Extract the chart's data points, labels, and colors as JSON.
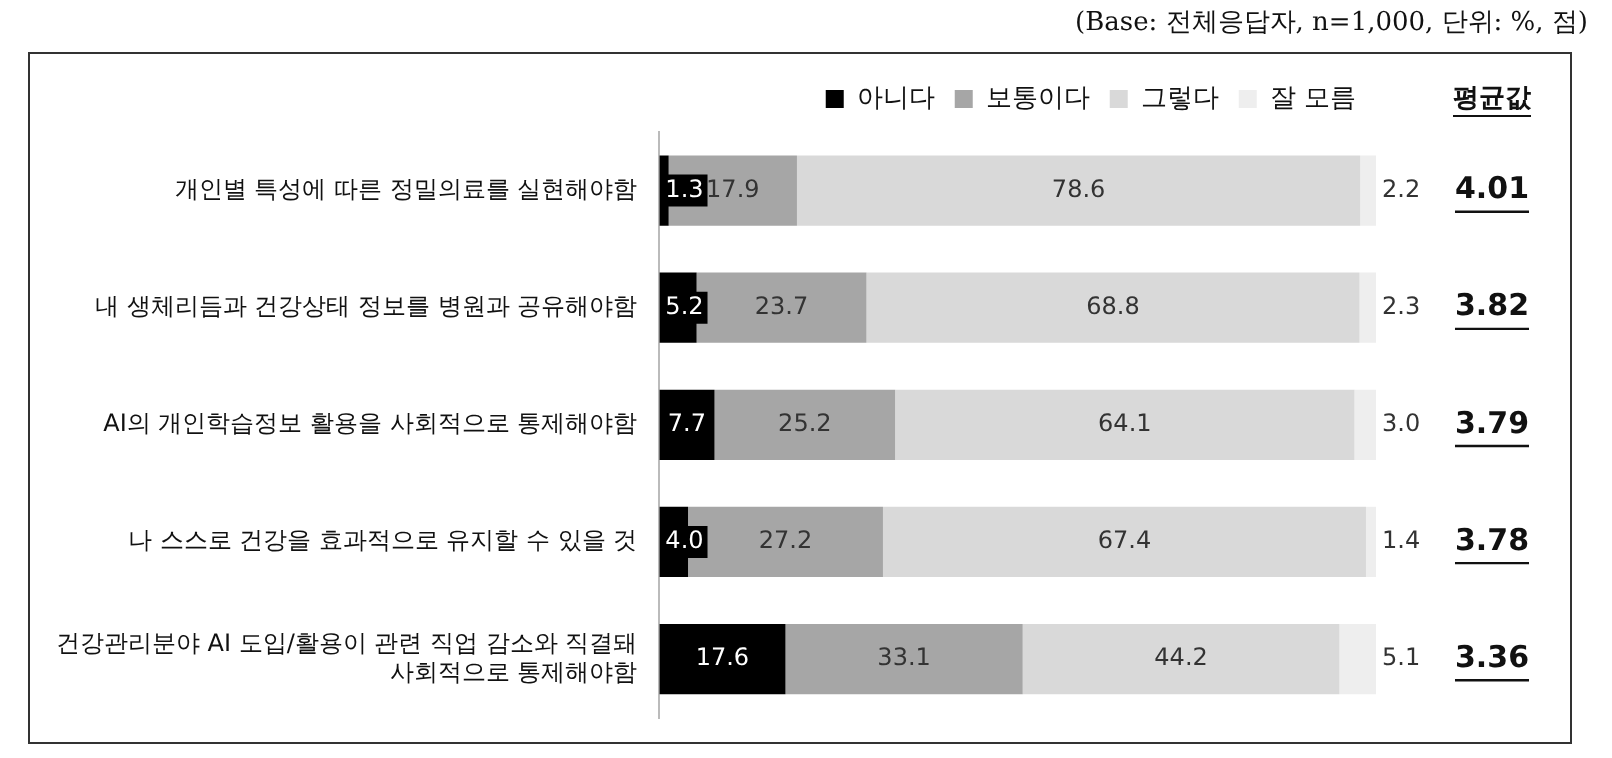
{
  "chart_data": {
    "type": "bar",
    "orientation": "horizontal",
    "stacked": true,
    "subtitle": "(Base: 전체응답자, n=1,000, 단위: %, 점)",
    "categories": [
      "개인별 특성에 따른 정밀의료를 실현해야함",
      "내 생체리듬과 건강상태 정보를 병원과 공유해야함",
      "AI의 개인학습정보 활용을 사회적으로 통제해야함",
      "나 스스로 건강을 효과적으로 유지할 수 있을 것",
      "건강관리분야 AI 도입/활용이 관련 직업 감소와 직결돼\n사회적으로 통제해야함"
    ],
    "series": [
      {
        "name": "아니다",
        "color": "#000000",
        "values": [
          1.3,
          5.2,
          7.7,
          4.0,
          17.6
        ],
        "value_labels": [
          "1.3",
          "5.2",
          "7.7",
          "4.0",
          "17.6"
        ]
      },
      {
        "name": "보통이다",
        "color": "#a6a6a6",
        "values": [
          17.9,
          23.7,
          25.2,
          27.2,
          33.1
        ],
        "value_labels": [
          "17.9",
          "23.7",
          "25.2",
          "27.2",
          "33.1"
        ]
      },
      {
        "name": "그렇다",
        "color": "#d9d9d9",
        "values": [
          78.6,
          68.8,
          64.1,
          67.4,
          44.2
        ],
        "value_labels": [
          "78.6",
          "68.8",
          "64.1",
          "67.4",
          "44.2"
        ]
      },
      {
        "name": "잘 모름",
        "color": "#eeeeee",
        "values": [
          2.2,
          2.3,
          3.0,
          1.4,
          5.1
        ],
        "value_labels": [
          "2.2",
          "2.3",
          "3.0",
          "1.4",
          "5.1"
        ]
      }
    ],
    "annotations": [
      "평균값",
      "4.01",
      "3.82",
      "3.79",
      "3.78",
      "3.36"
    ],
    "xlim": [
      0,
      100
    ],
    "tick_labels": "y",
    "legend": "top",
    "grid": false
  }
}
